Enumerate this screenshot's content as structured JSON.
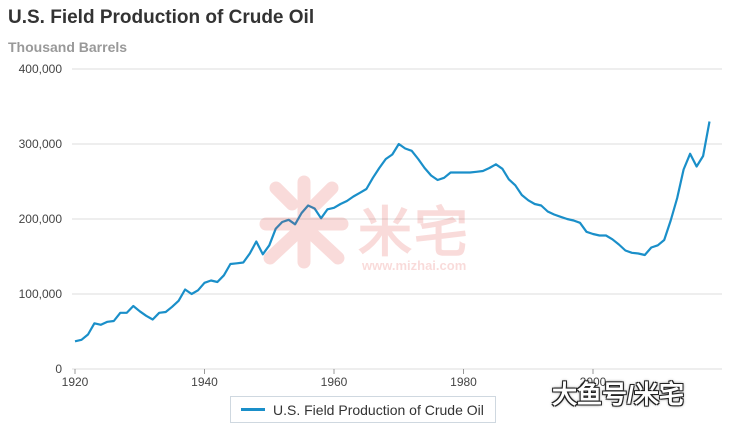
{
  "header": {
    "title": "U.S. Field Production of Crude Oil",
    "subtitle": "Thousand Barrels"
  },
  "legend": {
    "label": "U.S. Field Production of Crude Oil"
  },
  "watermark": {
    "text": "米宅",
    "url": "www.mizhai.com"
  },
  "corner_watermark": {
    "text": "大鱼号/米宅"
  },
  "colors": {
    "series": "#1a8fc9",
    "grid": "#dcdcdc",
    "watermark": "#e0403a"
  },
  "chart_data": {
    "type": "line",
    "title": "U.S. Field Production of Crude Oil",
    "subtitle": "Thousand Barrels",
    "xlabel": "",
    "ylabel": "",
    "xlim": [
      1920,
      2018
    ],
    "ylim": [
      0,
      400000
    ],
    "x_ticks": [
      1920,
      1940,
      1960,
      1980,
      2000
    ],
    "x_tick_labels": [
      "1920",
      "1940",
      "1960",
      "1980",
      "2000"
    ],
    "y_ticks": [
      0,
      100000,
      200000,
      300000,
      400000
    ],
    "y_tick_labels": [
      "0",
      "100,000",
      "200,000",
      "300,000",
      "400,000"
    ],
    "grid": {
      "horizontal": true,
      "vertical": false
    },
    "legend_position": "bottom-center",
    "series": [
      {
        "name": "U.S. Field Production of Crude Oil",
        "x": [
          1920,
          1921,
          1922,
          1923,
          1924,
          1925,
          1926,
          1927,
          1928,
          1929,
          1930,
          1931,
          1932,
          1933,
          1934,
          1935,
          1936,
          1937,
          1938,
          1939,
          1940,
          1941,
          1942,
          1943,
          1944,
          1945,
          1946,
          1947,
          1948,
          1949,
          1950,
          1951,
          1952,
          1953,
          1954,
          1955,
          1956,
          1957,
          1958,
          1959,
          1960,
          1961,
          1962,
          1963,
          1964,
          1965,
          1966,
          1967,
          1968,
          1969,
          1970,
          1971,
          1972,
          1973,
          1974,
          1975,
          1976,
          1977,
          1978,
          1979,
          1980,
          1981,
          1982,
          1983,
          1984,
          1985,
          1986,
          1987,
          1988,
          1989,
          1990,
          1991,
          1992,
          1993,
          1994,
          1995,
          1996,
          1997,
          1998,
          1999,
          2000,
          2001,
          2002,
          2003,
          2004,
          2005,
          2006,
          2007,
          2008,
          2009,
          2010,
          2011,
          2012,
          2013,
          2014,
          2015,
          2016,
          2017,
          2018
        ],
        "values": [
          37000,
          39000,
          46000,
          61000,
          59000,
          63000,
          64000,
          75000,
          75000,
          84000,
          77000,
          71000,
          66000,
          75000,
          76000,
          83000,
          91000,
          106000,
          100000,
          105000,
          115000,
          118000,
          116000,
          125000,
          140000,
          141000,
          142000,
          154000,
          170000,
          153000,
          165000,
          187000,
          196000,
          199000,
          193000,
          208000,
          218000,
          214000,
          201000,
          213000,
          215000,
          220000,
          224000,
          230000,
          235000,
          240000,
          255000,
          268000,
          280000,
          286000,
          300000,
          294000,
          291000,
          280000,
          268000,
          258000,
          252000,
          255000,
          262000,
          262000,
          262000,
          262000,
          263000,
          264000,
          268000,
          273000,
          267000,
          253000,
          245000,
          232000,
          225000,
          220000,
          218000,
          210000,
          206000,
          203000,
          200000,
          198000,
          195000,
          183000,
          180000,
          178000,
          178000,
          173000,
          166000,
          158000,
          155000,
          154000,
          152000,
          162000,
          165000,
          172000,
          198000,
          228000,
          266000,
          287000,
          270000,
          284000,
          330000
        ]
      }
    ]
  }
}
